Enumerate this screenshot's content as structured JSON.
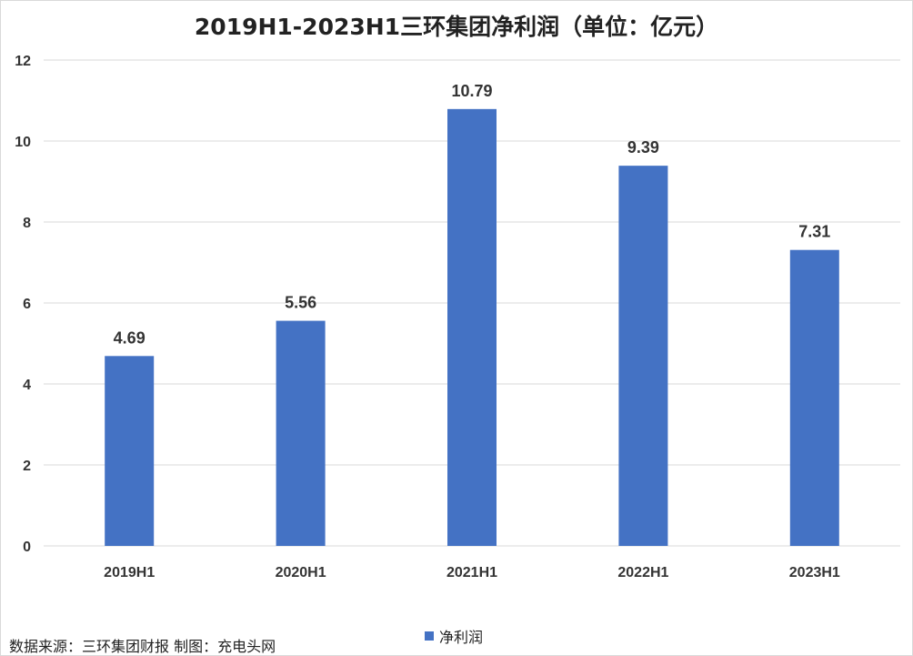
{
  "chart_data": {
    "type": "bar",
    "title": "2019H1-2023H1三环集团净利润（单位：亿元）",
    "categories": [
      "2019H1",
      "2020H1",
      "2021H1",
      "2022H1",
      "2023H1"
    ],
    "series": [
      {
        "name": "净利润",
        "values": [
          4.69,
          5.56,
          10.79,
          9.39,
          7.31
        ],
        "color": "#4472C4"
      }
    ],
    "data_labels": [
      "4.69",
      "5.56",
      "10.79",
      "9.39",
      "7.31"
    ],
    "ylim": [
      0,
      12
    ],
    "yticks": [
      0,
      2,
      4,
      6,
      8,
      10,
      12
    ],
    "xlabel": "",
    "ylabel": "",
    "grid": true,
    "legend_position": "bottom"
  },
  "footer": {
    "source": "数据来源：三环集团财报 制图：充电头网"
  },
  "colors": {
    "bar": "#4472C4",
    "grid": "#d9d9d9",
    "text": "#333333"
  }
}
